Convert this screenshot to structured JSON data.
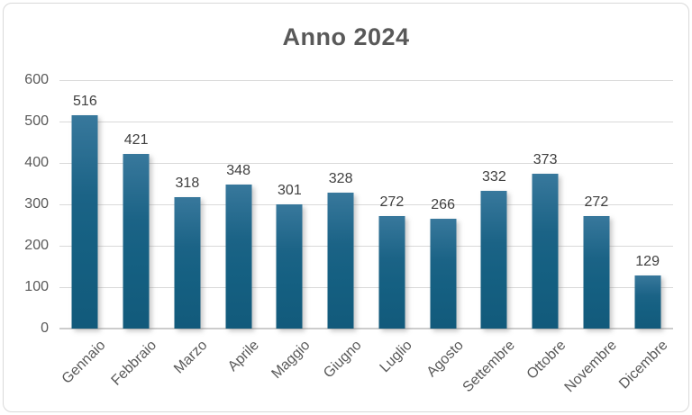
{
  "chart_data": {
    "type": "bar",
    "title": "Anno 2024",
    "categories": [
      "Gennaio",
      "Febbraio",
      "Marzo",
      "Aprile",
      "Maggio",
      "Giugno",
      "Luglio",
      "Agosto",
      "Settembre",
      "Ottobre",
      "Novembre",
      "Dicembre"
    ],
    "values": [
      516,
      421,
      318,
      348,
      301,
      328,
      272,
      266,
      332,
      373,
      272,
      129
    ],
    "xlabel": "",
    "ylabel": "",
    "ylim": [
      0,
      600
    ],
    "yticks": [
      0,
      100,
      200,
      300,
      400,
      500,
      600
    ],
    "grid": true,
    "legend": "none",
    "data_labels": true,
    "colors": {
      "bar": "#156082",
      "bar_gradient_top": "#38789c",
      "gridline": "#d9d9d9",
      "axis_line": "#cccccc",
      "title_text": "#595959",
      "tick_text": "#595959",
      "data_label_text": "#404040",
      "frame_border": "#d9d9d9",
      "background": "#ffffff"
    }
  }
}
